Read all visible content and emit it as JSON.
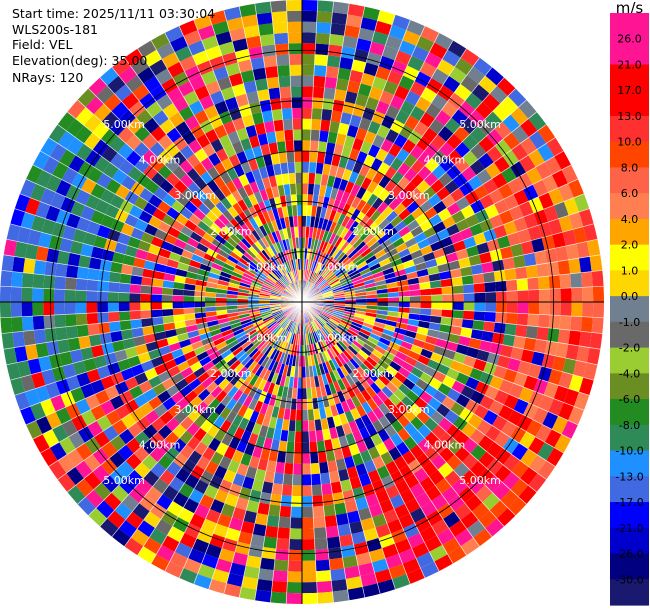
{
  "header": {
    "start_time": "Start time: 2025/11/11 03:30:04",
    "site": "WLS200s-181",
    "field": "Field: VEL",
    "elevation": "Elevation(deg): 35.00",
    "nrays": "NRays: 120"
  },
  "chart_data": {
    "type": "polar-ppi",
    "field": "VEL",
    "nrays": 120,
    "elevation_deg": 35.0,
    "max_range_km": 6.0,
    "range_rings": [
      {
        "label": "1.00km",
        "km": 1
      },
      {
        "label": "2.00km",
        "km": 2
      },
      {
        "label": "3.00km",
        "km": 3
      },
      {
        "label": "4.00km",
        "km": 4
      },
      {
        "label": "5.00km",
        "km": 5
      }
    ],
    "colorbar": {
      "unit": "m/s",
      "ticks": [
        "26.0",
        "21.0",
        "17.0",
        "13.0",
        "10.0",
        "8.0",
        "6.0",
        "4.0",
        "2.0",
        "1.0",
        "0.0",
        "-1.0",
        "-2.0",
        "-4.0",
        "-6.0",
        "-8.0",
        "-10.0",
        "-13.0",
        "-17.0",
        "-21.0",
        "-26.0",
        "-30.0"
      ],
      "colors": [
        "#ff1493",
        "#ff1493",
        "#ff0000",
        "#ff0000",
        "#ff3030",
        "#ff4500",
        "#ff6347",
        "#ff7f50",
        "#ffa500",
        "#ffff00",
        "#ffd700",
        "#708090",
        "#696969",
        "#9acd32",
        "#6b8e23",
        "#228b22",
        "#2e8b57",
        "#1e90ff",
        "#4169e1",
        "#0000ff",
        "#0000cd",
        "#000080",
        "#191970"
      ]
    },
    "sectors": [
      {
        "from_deg": 60,
        "to_deg": 130,
        "r_from_km": 4.0,
        "r_to_km": 6.0,
        "dominant": "orange-red",
        "values_ms": [
          6,
          17
        ]
      },
      {
        "from_deg": 130,
        "to_deg": 160,
        "r_from_km": 3.6,
        "r_to_km": 6.0,
        "dominant": "red",
        "values_ms": [
          17,
          21
        ]
      },
      {
        "from_deg": 250,
        "to_deg": 310,
        "r_from_km": 3.5,
        "r_to_km": 6.0,
        "dominant": "blue-green",
        "values_ms": [
          -17,
          -6
        ]
      }
    ]
  }
}
